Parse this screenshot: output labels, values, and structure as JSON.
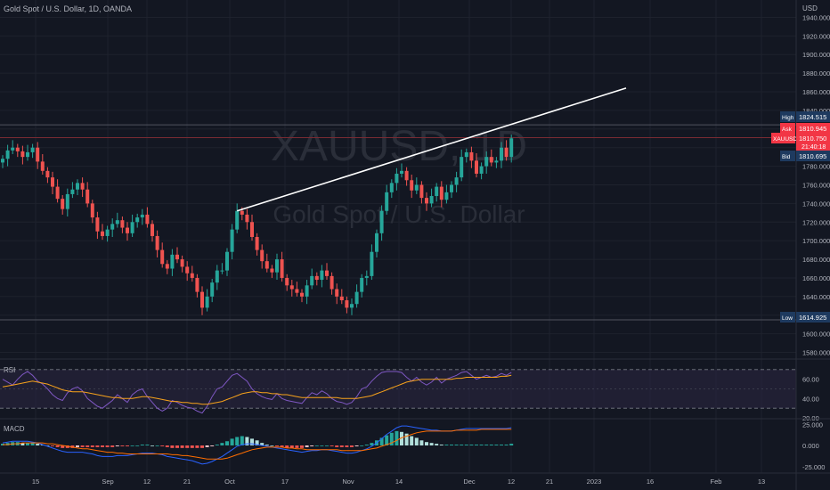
{
  "header": {
    "title": "Gold Spot / U.S. Dollar, 1D, OANDA",
    "currency": "USD"
  },
  "watermark": {
    "symbol": "XAUUSD, 1D",
    "name": "Gold Spot / U.S. Dollar"
  },
  "colors": {
    "background": "#131722",
    "grid": "#1e222d",
    "text": "#b2b5be",
    "up": "#26a69a",
    "down": "#ef5350",
    "trendline": "#ffffff",
    "rsi_line": "#7e57c2",
    "rsi_ma": "#f7a21b",
    "rsi_band": "#2a2540",
    "macd_line": "#2962ff",
    "signal_line": "#ff6d00",
    "label_blue": "#1e3a5f",
    "label_red": "#f23645"
  },
  "chart_data": [
    {
      "type": "candlestick",
      "title": "Gold Spot / U.S. Dollar, 1D, OANDA",
      "ylabel": "USD",
      "ylim": [
        1570,
        1950
      ],
      "y_ticks": [
        1580,
        1600,
        1620,
        1640,
        1660,
        1680,
        1700,
        1720,
        1740,
        1760,
        1780,
        1800,
        1820,
        1840,
        1860,
        1880,
        1900,
        1920,
        1940
      ],
      "y_tick_labels": [
        "1580.000",
        "1600.000",
        "1620.000",
        "1640.000",
        "1660.000",
        "1680.000",
        "1700.000",
        "1720.000",
        "1740.000",
        "1760.000",
        "1780.000",
        "1800.000",
        "1820.000",
        "1840.000",
        "1860.000",
        "1880.000",
        "1900.000",
        "1920.000",
        "1940.000"
      ],
      "x_tick_labels": [
        "15",
        "Sep",
        "12",
        "21",
        "Oct",
        "17",
        "Nov",
        "14",
        "Dec",
        "12",
        "21",
        "2023",
        "16",
        "Feb",
        "13"
      ],
      "grid": true,
      "closes": [
        1788,
        1797,
        1800,
        1796,
        1790,
        1795,
        1800,
        1785,
        1775,
        1768,
        1758,
        1745,
        1734,
        1750,
        1755,
        1762,
        1755,
        1740,
        1725,
        1710,
        1705,
        1712,
        1718,
        1722,
        1714,
        1708,
        1720,
        1725,
        1728,
        1718,
        1705,
        1690,
        1675,
        1670,
        1685,
        1680,
        1672,
        1665,
        1660,
        1645,
        1628,
        1640,
        1655,
        1668,
        1668,
        1688,
        1712,
        1732,
        1728,
        1720,
        1704,
        1690,
        1678,
        1670,
        1666,
        1680,
        1660,
        1652,
        1648,
        1644,
        1640,
        1652,
        1662,
        1658,
        1668,
        1662,
        1648,
        1640,
        1636,
        1628,
        1632,
        1645,
        1660,
        1662,
        1688,
        1708,
        1732,
        1752,
        1762,
        1772,
        1775,
        1765,
        1754,
        1760,
        1746,
        1740,
        1748,
        1758,
        1744,
        1752,
        1760,
        1768,
        1790,
        1795,
        1786,
        1772,
        1780,
        1790,
        1784,
        1786,
        1800,
        1790,
        1810
      ],
      "high": {
        "label": "High",
        "value": "1824.515"
      },
      "low": {
        "label": "Low",
        "value": "1614.925"
      },
      "ask": {
        "label": "Ask",
        "value": "1810.945"
      },
      "last": {
        "label": "XAUUSD",
        "value": "1810.750",
        "countdown": "21:40:18"
      },
      "bid": {
        "label": "Bid",
        "value": "1810.695"
      },
      "trendline": {
        "from": {
          "bar": 47,
          "price": 1732
        },
        "to": {
          "bar": 125,
          "price": 1864
        }
      },
      "price_lines": [
        1824.515,
        1810.75,
        1614.925
      ]
    },
    {
      "type": "line",
      "title": "RSI",
      "ylim": [
        20,
        80
      ],
      "y_tick_labels": [
        "60.00",
        "40.00",
        "20.00"
      ],
      "y_ticks": [
        60,
        40,
        20
      ],
      "band": [
        30,
        70
      ],
      "series": [
        {
          "values": [
            60,
            57,
            54,
            60,
            65,
            68,
            64,
            58,
            55,
            50,
            44,
            40,
            38,
            46,
            50,
            52,
            48,
            40,
            36,
            32,
            30,
            34,
            38,
            44,
            40,
            36,
            44,
            48,
            50,
            42,
            36,
            30,
            27,
            30,
            38,
            36,
            33,
            31,
            30,
            27,
            25,
            32,
            42,
            50,
            52,
            58,
            64,
            66,
            62,
            58,
            50,
            45,
            42,
            40,
            39,
            45,
            40,
            38,
            37,
            36,
            35,
            41,
            46,
            44,
            48,
            45,
            40,
            37,
            36,
            34,
            36,
            42,
            50,
            52,
            58,
            63,
            67,
            68,
            68,
            68,
            67,
            62,
            58,
            62,
            57,
            54,
            57,
            62,
            56,
            60,
            62,
            64,
            67,
            68,
            64,
            60,
            62,
            64,
            62,
            63,
            66,
            64,
            67
          ]
        },
        {
          "values": [
            52,
            53,
            54,
            55,
            56,
            57,
            58,
            57,
            56,
            55,
            53,
            51,
            49,
            48,
            47,
            47,
            47,
            46,
            45,
            44,
            43,
            42,
            41,
            41,
            40,
            40,
            40,
            41,
            42,
            42,
            41,
            40,
            39,
            38,
            37,
            37,
            36,
            36,
            35,
            35,
            34,
            34,
            35,
            36,
            37,
            39,
            41,
            43,
            45,
            46,
            47,
            47,
            46,
            46,
            45,
            45,
            44,
            44,
            43,
            42,
            41,
            41,
            41,
            41,
            41,
            41,
            41,
            41,
            40,
            40,
            40,
            40,
            41,
            42,
            43,
            45,
            47,
            49,
            51,
            53,
            55,
            57,
            58,
            59,
            60,
            60,
            60,
            60,
            60,
            60,
            60,
            61,
            61,
            62,
            62,
            62,
            62,
            62,
            62,
            62,
            63,
            63,
            64
          ]
        }
      ]
    },
    {
      "type": "bar",
      "title": "MACD",
      "ylim": [
        -32,
        32
      ],
      "y_tick_labels": [
        "25.000",
        "0.000",
        "-25.000"
      ],
      "y_ticks": [
        25,
        0,
        -25
      ],
      "histogram": [
        2,
        3,
        4,
        4,
        3,
        3,
        3,
        2,
        1,
        0,
        -1,
        -2,
        -3,
        -3,
        -3,
        -2,
        -2,
        -2,
        -2,
        -2,
        -2,
        -2,
        -2,
        -1,
        -1,
        -1,
        0,
        0,
        1,
        1,
        0,
        0,
        -1,
        -2,
        -3,
        -3,
        -3,
        -3,
        -3,
        -3,
        -3,
        -2,
        -1,
        1,
        3,
        5,
        8,
        10,
        11,
        10,
        8,
        6,
        3,
        1,
        0,
        -1,
        -2,
        -3,
        -3,
        -3,
        -3,
        -2,
        -1,
        0,
        0,
        0,
        -1,
        -2,
        -2,
        -2,
        -2,
        -1,
        0,
        1,
        3,
        6,
        9,
        12,
        15,
        17,
        16,
        14,
        11,
        9,
        6,
        4,
        3,
        2,
        1,
        1,
        1,
        1,
        1,
        1,
        1,
        1,
        1,
        1,
        1,
        1,
        1,
        1,
        2
      ],
      "series": [
        {
          "values": [
            3,
            4,
            5,
            5,
            5,
            5,
            4,
            3,
            1,
            -1,
            -3,
            -5,
            -7,
            -8,
            -8,
            -8,
            -8,
            -9,
            -10,
            -12,
            -13,
            -13,
            -13,
            -12,
            -12,
            -12,
            -11,
            -10,
            -9,
            -9,
            -9,
            -10,
            -11,
            -13,
            -14,
            -15,
            -16,
            -17,
            -18,
            -20,
            -22,
            -21,
            -19,
            -16,
            -13,
            -9,
            -5,
            -1,
            1,
            2,
            2,
            1,
            0,
            -1,
            -2,
            -3,
            -4,
            -5,
            -6,
            -7,
            -8,
            -7,
            -6,
            -6,
            -5,
            -5,
            -6,
            -7,
            -8,
            -9,
            -9,
            -8,
            -6,
            -4,
            -1,
            3,
            8,
            13,
            17,
            21,
            23,
            23,
            22,
            21,
            20,
            19,
            18,
            18,
            17,
            17,
            17,
            18,
            19,
            20,
            20,
            20,
            20,
            20,
            20,
            20,
            20,
            20,
            21
          ]
        },
        {
          "values": [
            1,
            1,
            2,
            2,
            3,
            3,
            3,
            3,
            3,
            2,
            2,
            1,
            0,
            -1,
            -2,
            -3,
            -4,
            -4,
            -5,
            -6,
            -7,
            -8,
            -8,
            -9,
            -9,
            -10,
            -10,
            -10,
            -10,
            -10,
            -10,
            -10,
            -10,
            -10,
            -11,
            -11,
            -12,
            -12,
            -13,
            -14,
            -15,
            -16,
            -16,
            -16,
            -16,
            -15,
            -13,
            -11,
            -9,
            -7,
            -5,
            -4,
            -3,
            -2,
            -2,
            -2,
            -2,
            -3,
            -3,
            -4,
            -4,
            -5,
            -5,
            -5,
            -5,
            -5,
            -5,
            -5,
            -6,
            -6,
            -6,
            -6,
            -6,
            -5,
            -4,
            -3,
            -1,
            1,
            3,
            6,
            9,
            11,
            13,
            15,
            16,
            17,
            17,
            17,
            17,
            17,
            17,
            18,
            18,
            18,
            18,
            18,
            19,
            19,
            19,
            19,
            19,
            19,
            19
          ]
        }
      ]
    }
  ]
}
